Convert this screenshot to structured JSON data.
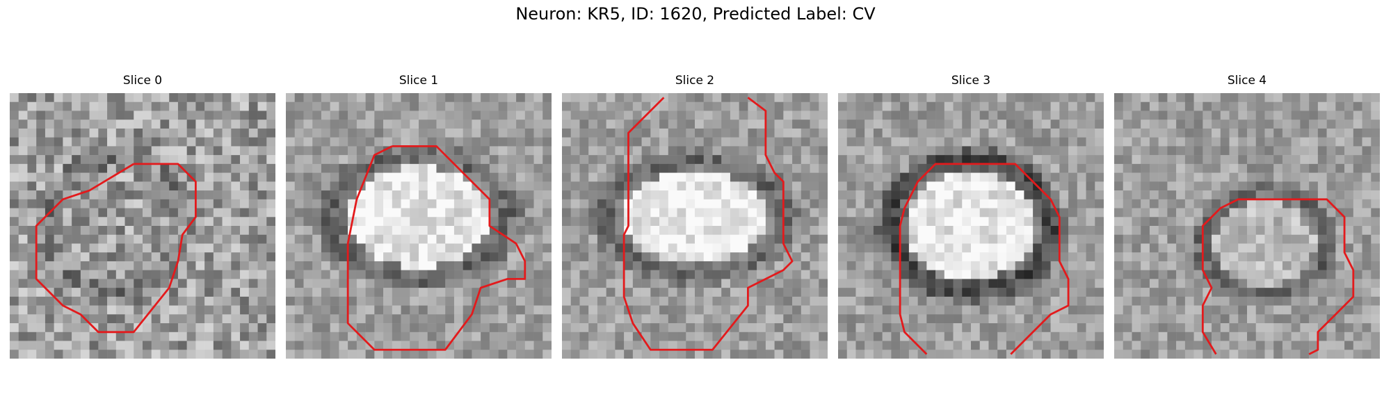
{
  "figure": {
    "title": "Neuron: KR5, ID: 1620, Predicted Label: CV"
  },
  "panels": [
    {
      "title": "Slice 0"
    },
    {
      "title": "Slice 1"
    },
    {
      "title": "Slice 2"
    },
    {
      "title": "Slice 3"
    },
    {
      "title": "Slice 4"
    }
  ],
  "colors": {
    "contour": "#e31a1c",
    "colormap": "gray"
  }
}
